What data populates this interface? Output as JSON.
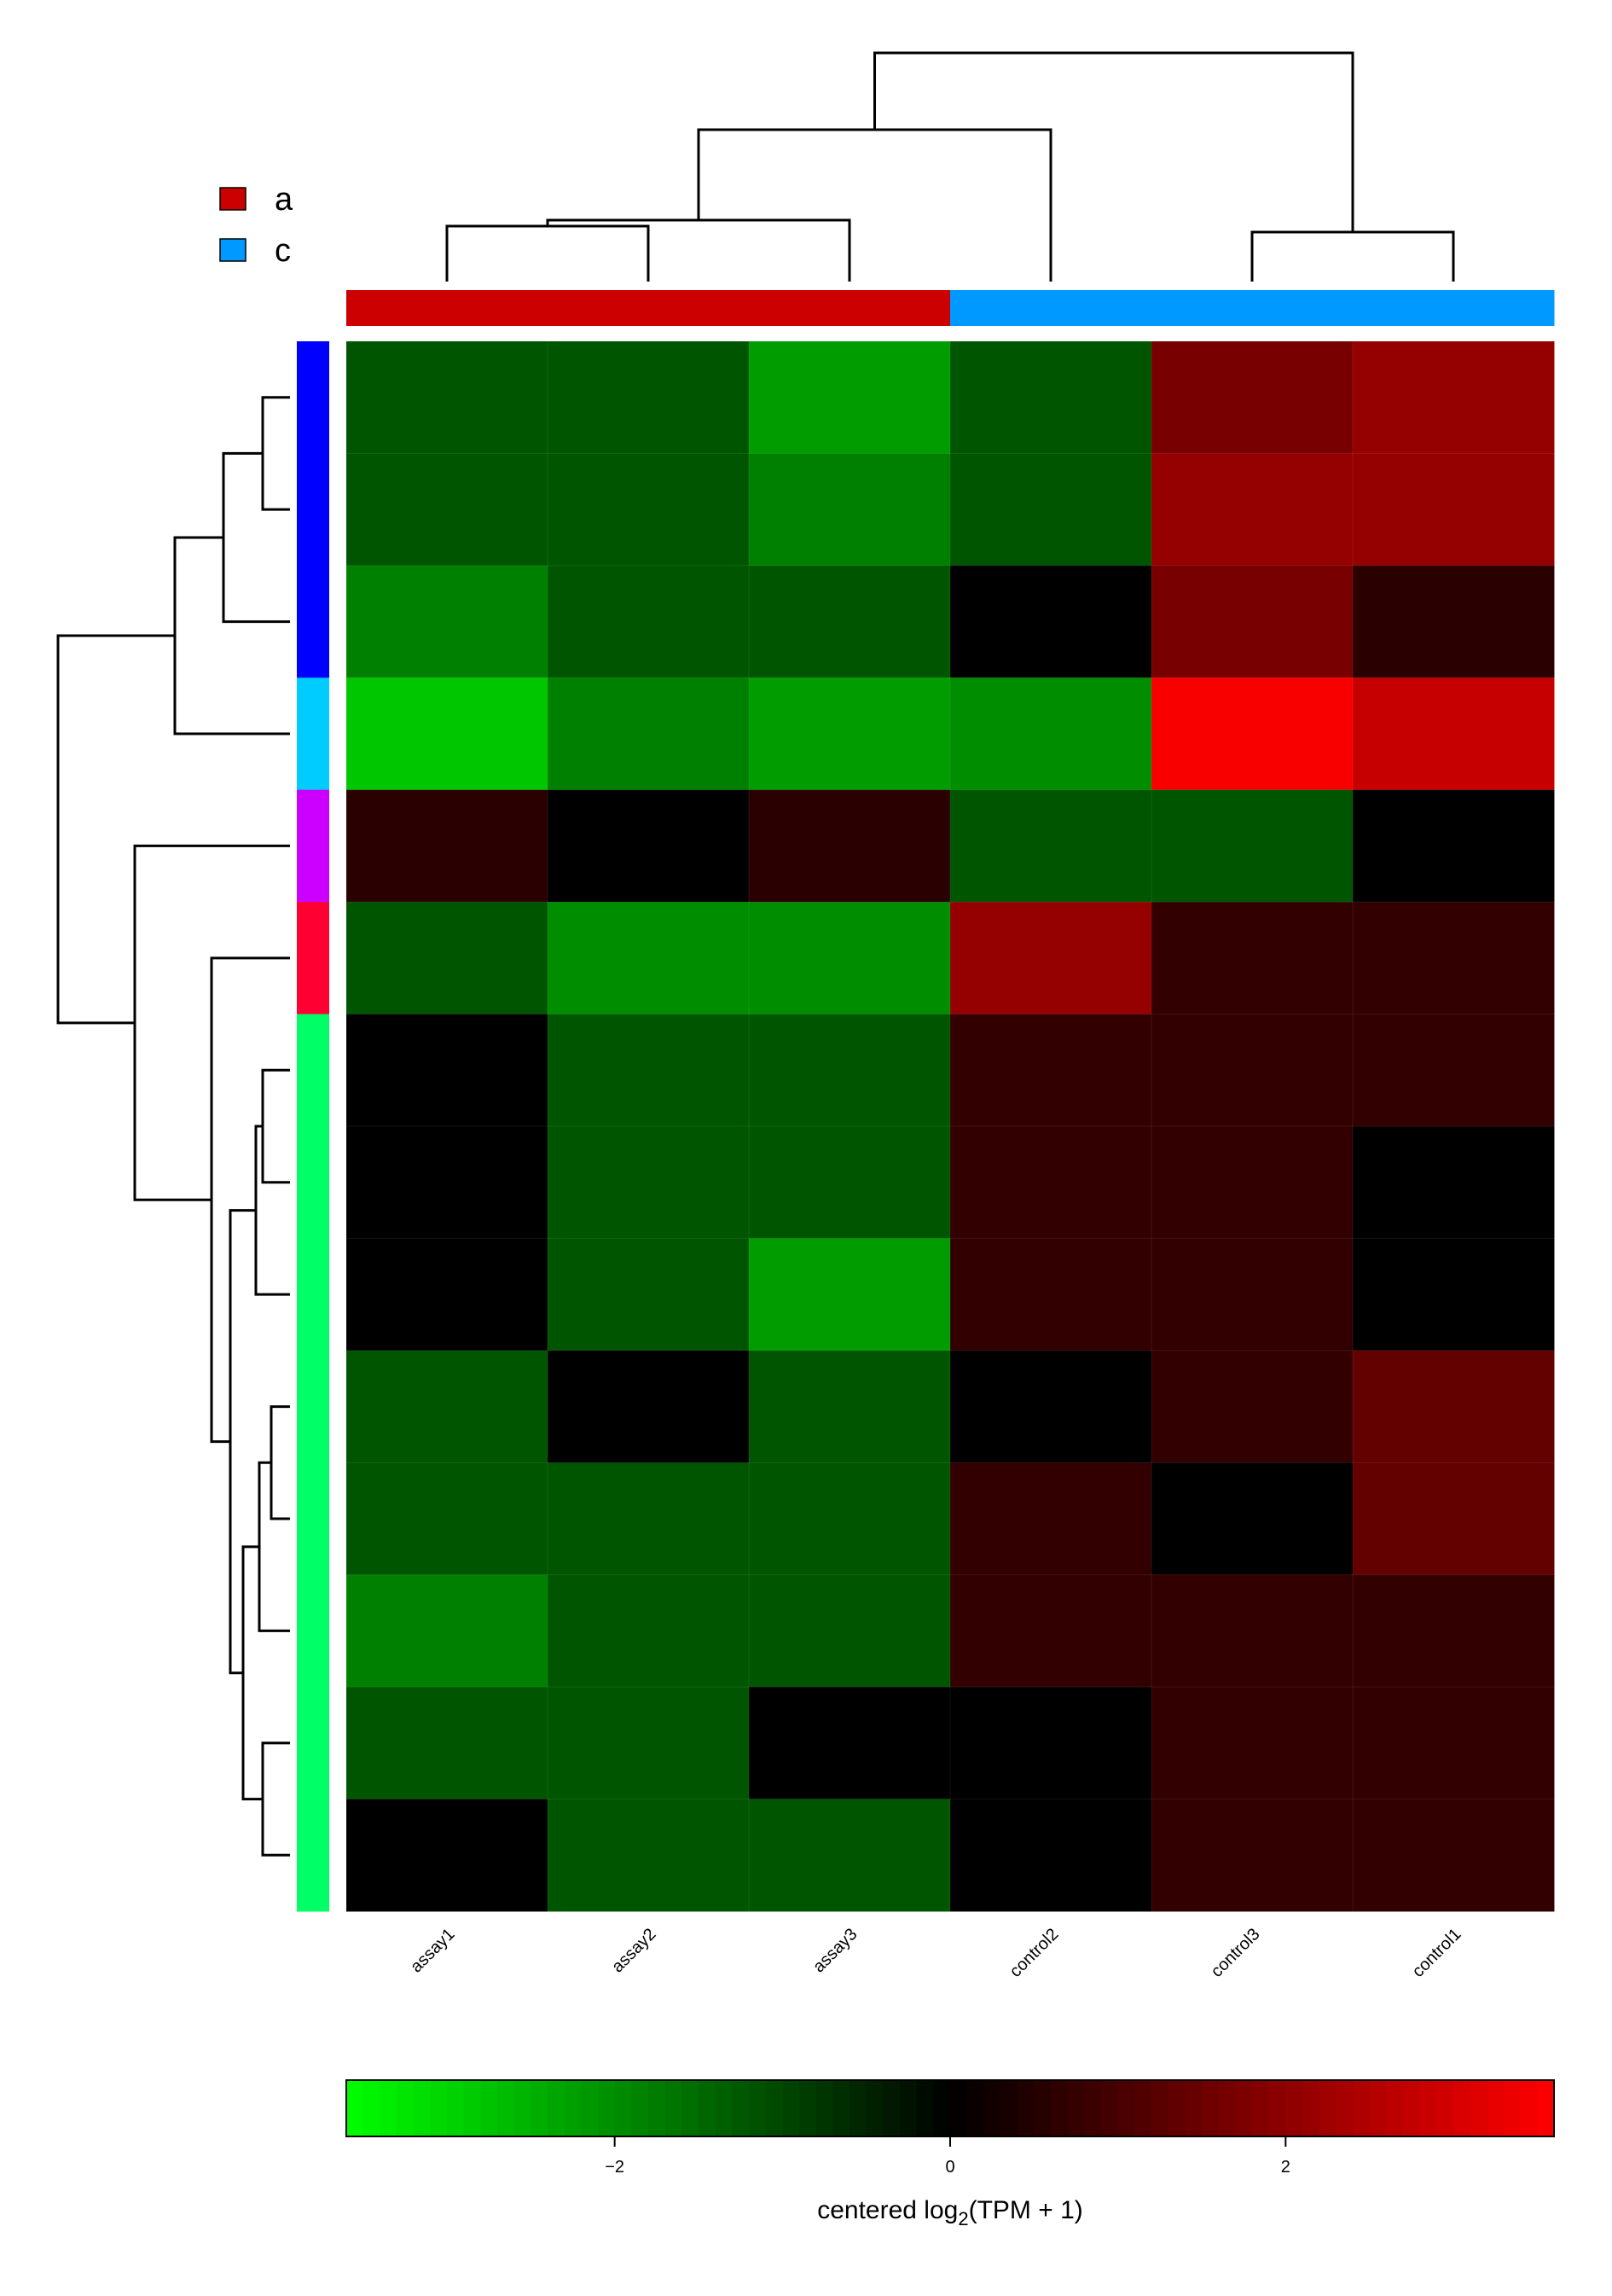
{
  "chart_data": {
    "type": "heatmap",
    "columns": [
      "assay1",
      "assay2",
      "assay3",
      "control2",
      "control3",
      "control1"
    ],
    "column_groups": [
      "a",
      "a",
      "a",
      "c",
      "c",
      "c"
    ],
    "row_clusters": [
      "blue",
      "blue",
      "blue",
      "cyan",
      "purple",
      "crimson",
      "green",
      "green",
      "green",
      "green",
      "green",
      "green",
      "green",
      "green"
    ],
    "values": [
      [
        -1.2,
        -1.2,
        -2.2,
        -1.2,
        1.7,
        2.1
      ],
      [
        -1.2,
        -1.2,
        -1.8,
        -1.2,
        2.1,
        2.1
      ],
      [
        -1.8,
        -1.2,
        -1.2,
        0.0,
        1.7,
        0.6
      ],
      [
        -2.8,
        -1.8,
        -2.2,
        -2.0,
        3.5,
        2.8
      ],
      [
        0.6,
        0.0,
        0.6,
        -1.2,
        -1.2,
        0.0
      ],
      [
        -1.2,
        -2.0,
        -2.0,
        2.1,
        0.7,
        0.7
      ],
      [
        0.0,
        -1.2,
        -1.2,
        0.7,
        0.7,
        0.7
      ],
      [
        0.0,
        -1.2,
        -1.2,
        0.7,
        0.7,
        0.0
      ],
      [
        0.0,
        -1.2,
        -2.2,
        0.7,
        0.7,
        0.0
      ],
      [
        -1.2,
        0.0,
        -1.2,
        0.0,
        0.7,
        1.4
      ],
      [
        -1.2,
        -1.2,
        -1.2,
        0.7,
        0.0,
        1.4
      ],
      [
        -1.8,
        -1.2,
        -1.2,
        0.7,
        0.7,
        0.7
      ],
      [
        -1.2,
        -1.2,
        0.0,
        0.0,
        0.7,
        0.7
      ],
      [
        0.0,
        -1.2,
        -1.2,
        0.0,
        0.7,
        0.7
      ]
    ],
    "group_legend": [
      {
        "label": "a",
        "color": "#cc0000"
      },
      {
        "label": "c",
        "color": "#0099ff"
      }
    ],
    "row_cluster_colors": {
      "blue": "#0000ff",
      "cyan": "#00ccff",
      "purple": "#cc00ff",
      "crimson": "#ff0033",
      "green": "#00ff66"
    },
    "color_scale": {
      "low": "#00ff00",
      "mid": "#000000",
      "high": "#ff0000",
      "range": [
        -3.6,
        3.6
      ],
      "ticks": [
        -2,
        0,
        2
      ],
      "tick_labels": [
        "−2",
        "0",
        "2"
      ],
      "label_prefix": "centered log",
      "label_sub": "2",
      "label_suffix": "(TPM + 1)"
    }
  }
}
